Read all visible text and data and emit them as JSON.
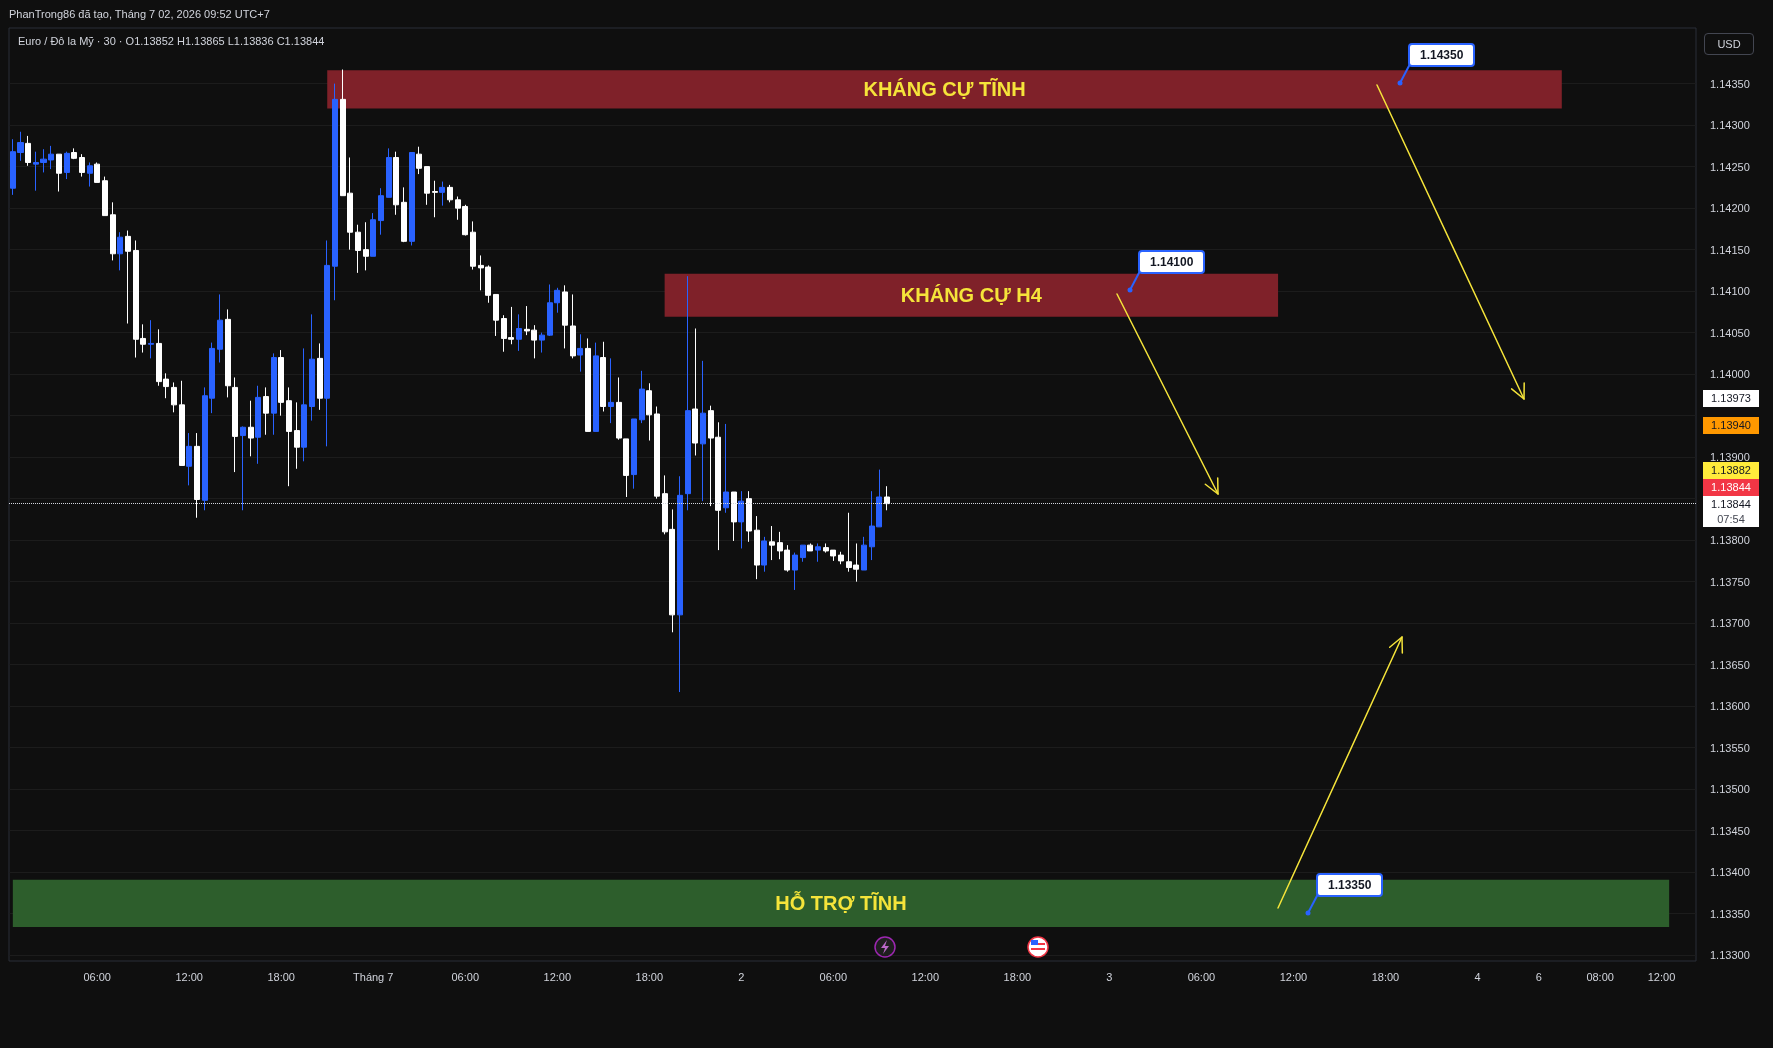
{
  "chart_data": {
    "type": "candlestick",
    "title": "PhanTrong86 đã tạo, Tháng 7 02, 2026 09:52 UTC+7",
    "subtitle": "Euro / Đô la Mỹ · 30 · O1.13852 H1.13865 L1.13836 C1.13844",
    "categories": [
      null,
      null,
      null,
      null,
      null,
      null,
      null,
      null,
      null,
      null,
      null,
      "06:00",
      null,
      null,
      null,
      null,
      null,
      null,
      null,
      null,
      null,
      null,
      null,
      "12:00",
      null,
      null,
      null,
      null,
      null,
      null,
      null,
      null,
      null,
      null,
      null,
      "18:00",
      null,
      null,
      null,
      null,
      null,
      null,
      null,
      null,
      null,
      null,
      null,
      "Tháng 7",
      null,
      null,
      null,
      null,
      null,
      null,
      null,
      null,
      null,
      null,
      null,
      "06:00",
      null,
      null,
      null,
      null,
      null,
      null,
      null,
      null,
      null,
      null,
      null,
      "12:00",
      null,
      null,
      null,
      null,
      null,
      null,
      null,
      null,
      null,
      null,
      null,
      "18:00",
      null,
      null,
      null,
      null,
      null,
      null,
      null,
      null,
      null,
      null,
      null,
      "2",
      null,
      null,
      null,
      null,
      null,
      null,
      null,
      null,
      null,
      null,
      null,
      "06:00",
      null,
      null,
      null,
      null,
      null,
      null,
      null,
      null,
      null,
      null,
      null,
      "12:00",
      null,
      null,
      null,
      null,
      null,
      null,
      null,
      null,
      null,
      null,
      null,
      "18:00",
      null,
      null,
      null,
      null,
      null,
      null,
      null,
      null,
      null,
      null,
      null,
      "3",
      null,
      null,
      null,
      null,
      null,
      null,
      null,
      null,
      null,
      null,
      null,
      "06:00",
      null,
      null,
      null,
      null,
      null,
      null,
      null,
      null,
      null,
      null,
      null,
      "12:00",
      null,
      null,
      null,
      null,
      null,
      null,
      null,
      null,
      null,
      null,
      null,
      "18:00",
      null,
      null,
      null,
      null,
      null,
      null,
      null,
      null,
      null,
      null,
      null,
      "4",
      null,
      null,
      null,
      null,
      null,
      null,
      null,
      "6",
      null,
      null,
      null,
      null,
      null,
      null,
      null,
      "08:00",
      null,
      null,
      null,
      null,
      null,
      null,
      null,
      "12:00",
      null,
      null,
      null,
      null
    ],
    "ohlc": [
      [
        1.14224,
        1.14283,
        1.14216,
        1.14268
      ],
      [
        1.14267,
        1.14292,
        1.14257,
        1.14279
      ],
      [
        1.14278,
        1.14287,
        1.14251,
        1.14255
      ],
      [
        1.14253,
        1.14268,
        1.14221,
        1.14255
      ],
      [
        1.14255,
        1.14271,
        1.14243,
        1.14259
      ],
      [
        1.14258,
        1.14275,
        1.14247,
        1.14265
      ],
      [
        1.14265,
        1.14265,
        1.1422,
        1.14242
      ],
      [
        1.14243,
        1.14268,
        1.14235,
        1.14266
      ],
      [
        1.14267,
        1.14272,
        1.14259,
        1.1426
      ],
      [
        1.14261,
        1.14265,
        1.14238,
        1.14243
      ],
      [
        1.14242,
        1.14255,
        1.14226,
        1.14251
      ],
      [
        1.14253,
        1.14255,
        1.14231,
        1.14231
      ],
      [
        1.14233,
        1.14238,
        1.14191,
        1.14191
      ],
      [
        1.14192,
        1.14207,
        1.14137,
        1.14145
      ],
      [
        1.14145,
        1.14171,
        1.14125,
        1.14165
      ],
      [
        1.14166,
        1.14173,
        1.14061,
        1.14148
      ],
      [
        1.14149,
        1.14161,
        1.1402,
        1.14042
      ],
      [
        1.14043,
        1.1406,
        1.14026,
        1.14036
      ],
      [
        1.14036,
        1.14065,
        1.14019,
        1.14037
      ],
      [
        1.14037,
        1.14054,
        1.13986,
        1.13991
      ],
      [
        1.13994,
        1.14001,
        1.13971,
        1.13985
      ],
      [
        1.13984,
        1.1399,
        1.13954,
        1.13963
      ],
      [
        1.13963,
        1.13992,
        1.1389,
        1.1389
      ],
      [
        1.13889,
        1.13929,
        1.13866,
        1.13913
      ],
      [
        1.13913,
        1.13929,
        1.13827,
        1.13849
      ],
      [
        1.13848,
        1.13984,
        1.13836,
        1.13974
      ],
      [
        1.13971,
        1.14038,
        1.13953,
        1.14031
      ],
      [
        1.1403,
        1.14096,
        1.14014,
        1.14065
      ],
      [
        1.14066,
        1.14078,
        1.13972,
        1.13986
      ],
      [
        1.13984,
        1.13996,
        1.13882,
        1.13925
      ],
      [
        1.13926,
        1.13937,
        1.13836,
        1.13936
      ],
      [
        1.13936,
        1.13968,
        1.13901,
        1.13923
      ],
      [
        1.13924,
        1.13986,
        1.13892,
        1.13972
      ],
      [
        1.13973,
        1.13984,
        1.13927,
        1.13953
      ],
      [
        1.13953,
        1.14025,
        1.13927,
        1.1402
      ],
      [
        1.1402,
        1.14029,
        1.1395,
        1.13966
      ],
      [
        1.13968,
        1.13984,
        1.13865,
        1.13931
      ],
      [
        1.13932,
        1.13966,
        1.13886,
        1.13912
      ],
      [
        1.13912,
        1.14031,
        1.13895,
        1.13963
      ],
      [
        1.13961,
        1.14072,
        1.13944,
        1.14018
      ],
      [
        1.14019,
        1.14037,
        1.13957,
        1.13971
      ],
      [
        1.13971,
        1.14161,
        1.13913,
        1.14131
      ],
      [
        1.1413,
        1.1435,
        1.14089,
        1.14331
      ],
      [
        1.14331,
        1.14367,
        1.14215,
        1.14215
      ],
      [
        1.14218,
        1.14261,
        1.1415,
        1.14171
      ],
      [
        1.14171,
        1.1418,
        1.14122,
        1.14149
      ],
      [
        1.1415,
        1.14183,
        1.14125,
        1.14142
      ],
      [
        1.14142,
        1.14194,
        1.14142,
        1.14186
      ],
      [
        1.14185,
        1.14224,
        1.14168,
        1.14215
      ],
      [
        1.14213,
        1.14272,
        1.14213,
        1.14261
      ],
      [
        1.14261,
        1.14268,
        1.14192,
        1.14204
      ],
      [
        1.14207,
        1.14225,
        1.14159,
        1.1416
      ],
      [
        1.1416,
        1.14267,
        1.14155,
        1.14267
      ],
      [
        1.14265,
        1.14274,
        1.14241,
        1.14248
      ],
      [
        1.1425,
        1.1425,
        1.14204,
        1.14218
      ],
      [
        1.1422,
        1.14233,
        1.14189,
        1.14219
      ],
      [
        1.14219,
        1.14232,
        1.14203,
        1.14225
      ],
      [
        1.14225,
        1.14228,
        1.14207,
        1.1421
      ],
      [
        1.1421,
        1.14214,
        1.14186,
        1.142
      ],
      [
        1.14202,
        1.14204,
        1.14167,
        1.14168
      ],
      [
        1.14171,
        1.14184,
        1.14126,
        1.1413
      ],
      [
        1.14131,
        1.14143,
        1.14101,
        1.14128
      ],
      [
        1.14129,
        1.14131,
        1.14086,
        1.14095
      ],
      [
        1.14096,
        1.14096,
        1.14046,
        1.14065
      ],
      [
        1.14067,
        1.14071,
        1.14027,
        1.14043
      ],
      [
        1.14044,
        1.14081,
        1.14036,
        1.14042
      ],
      [
        1.14042,
        1.14072,
        1.14028,
        1.14055
      ],
      [
        1.14054,
        1.14082,
        1.14047,
        1.14052
      ],
      [
        1.14053,
        1.14059,
        1.14019,
        1.14041
      ],
      [
        1.14041,
        1.1405,
        1.14026,
        1.14047
      ],
      [
        1.14047,
        1.14108,
        1.14046,
        1.14086
      ],
      [
        1.14086,
        1.14104,
        1.14074,
        1.14101
      ],
      [
        1.14099,
        1.14107,
        1.14031,
        1.14059
      ],
      [
        1.14058,
        1.14096,
        1.14019,
        1.14022
      ],
      [
        1.14023,
        1.14048,
        1.14003,
        1.14031
      ],
      [
        1.14031,
        1.14043,
        1.13931,
        1.13931
      ],
      [
        1.13931,
        1.14038,
        1.13931,
        1.14022
      ],
      [
        1.1402,
        1.14039,
        1.13955,
        1.13961
      ],
      [
        1.13961,
        1.14019,
        1.13941,
        1.13966
      ],
      [
        1.13966,
        1.13996,
        1.13921,
        1.13923
      ],
      [
        1.13922,
        1.13922,
        1.13852,
        1.13878
      ],
      [
        1.13879,
        1.13946,
        1.13862,
        1.13946
      ],
      [
        1.13945,
        1.14004,
        1.13941,
        1.13982
      ],
      [
        1.1398,
        1.13989,
        1.1392,
        1.13951
      ],
      [
        1.13952,
        1.13961,
        1.1385,
        1.13853
      ],
      [
        1.13856,
        1.13878,
        1.13807,
        1.1381
      ],
      [
        1.13813,
        1.13837,
        1.13689,
        1.1371
      ],
      [
        1.1371,
        1.13877,
        1.13617,
        1.13854
      ],
      [
        1.13856,
        1.14118,
        1.13836,
        1.13956
      ],
      [
        1.13958,
        1.14055,
        1.13902,
        1.13917
      ],
      [
        1.13916,
        1.14016,
        1.13847,
        1.13953
      ],
      [
        1.13956,
        1.13962,
        1.13841,
        1.13923
      ],
      [
        1.13924,
        1.13942,
        1.13788,
        1.13836
      ],
      [
        1.13839,
        1.1394,
        1.13833,
        1.13858
      ],
      [
        1.13858,
        1.13858,
        1.13799,
        1.13822
      ],
      [
        1.13822,
        1.13859,
        1.1379,
        1.13847
      ],
      [
        1.1385,
        1.13859,
        1.13798,
        1.13811
      ],
      [
        1.13812,
        1.13829,
        1.13753,
        1.1377
      ],
      [
        1.1377,
        1.13804,
        1.13762,
        1.13799
      ],
      [
        1.13798,
        1.13817,
        1.13776,
        1.13794
      ],
      [
        1.13797,
        1.1381,
        1.13777,
        1.13787
      ],
      [
        1.13788,
        1.13794,
        1.13762,
        1.13764
      ],
      [
        1.13764,
        1.13785,
        1.1374,
        1.13782
      ],
      [
        1.13779,
        1.13794,
        1.13774,
        1.13794
      ],
      [
        1.13794,
        1.13796,
        1.13787,
        1.13787
      ],
      [
        1.13788,
        1.13796,
        1.13774,
        1.13792
      ],
      [
        1.13791,
        1.13796,
        1.13785,
        1.13787
      ],
      [
        1.13788,
        1.13788,
        1.13775,
        1.13781
      ],
      [
        1.13782,
        1.13786,
        1.13771,
        1.13775
      ],
      [
        1.13774,
        1.13833,
        1.13762,
        1.13767
      ],
      [
        1.1377,
        1.13796,
        1.1375,
        1.13765
      ],
      [
        1.13764,
        1.13804,
        1.13764,
        1.13794
      ],
      [
        1.13792,
        1.13859,
        1.13776,
        1.13817
      ],
      [
        1.13816,
        1.13885,
        1.13816,
        1.13852
      ],
      [
        1.13852,
        1.13865,
        1.13836,
        1.13844
      ],
      null,
      null,
      null,
      null,
      null,
      null,
      null,
      null,
      null,
      null,
      null,
      null,
      null,
      null,
      null,
      null,
      null,
      null,
      null,
      null,
      null,
      null,
      null,
      null,
      null,
      null,
      null,
      null,
      null,
      null,
      null,
      null,
      null,
      null,
      null,
      null,
      null,
      null,
      null,
      null,
      null,
      null,
      null,
      null,
      null,
      null,
      null,
      null,
      null,
      null,
      null,
      null,
      null,
      null,
      null,
      null,
      null,
      null,
      null,
      null,
      null,
      null,
      null,
      null,
      null,
      null,
      null,
      null,
      null,
      null,
      null,
      null,
      null,
      null,
      null,
      null,
      null,
      null,
      null,
      null,
      null,
      null,
      null,
      null,
      null,
      null,
      null,
      null,
      null,
      null,
      null,
      null,
      null,
      null,
      null,
      null,
      null,
      null,
      null,
      null,
      null,
      null,
      null,
      null,
      null
    ],
    "colors": [
      "#2962ff",
      "#2962ff",
      "#ffffff",
      "#2962ff",
      "#2962ff",
      "#2962ff",
      "#ffffff",
      "#2962ff",
      "#ffffff",
      "#ffffff",
      "#2962ff",
      "#ffffff",
      "#ffffff",
      "#ffffff",
      "#2962ff",
      "#ffffff",
      "#ffffff",
      "#ffffff",
      "#2962ff",
      "#ffffff",
      "#ffffff",
      "#ffffff",
      "#ffffff",
      "#2962ff",
      "#ffffff",
      "#2962ff",
      "#2962ff",
      "#2962ff",
      "#ffffff",
      "#ffffff",
      "#2962ff",
      "#ffffff",
      "#2962ff",
      "#ffffff",
      "#2962ff",
      "#ffffff",
      "#ffffff",
      "#ffffff",
      "#2962ff",
      "#2962ff",
      "#ffffff",
      "#2962ff",
      "#2962ff",
      "#ffffff",
      "#ffffff",
      "#ffffff",
      "#ffffff",
      "#2962ff",
      "#2962ff",
      "#2962ff",
      "#ffffff",
      "#ffffff",
      "#2962ff",
      "#ffffff",
      "#ffffff",
      "#ffffff",
      "#2962ff",
      "#ffffff",
      "#ffffff",
      "#ffffff",
      "#ffffff",
      "#ffffff",
      "#ffffff",
      "#ffffff",
      "#ffffff",
      "#ffffff",
      "#2962ff",
      "#ffffff",
      "#ffffff",
      "#2962ff",
      "#2962ff",
      "#2962ff",
      "#ffffff",
      "#ffffff",
      "#2962ff",
      "#ffffff",
      "#2962ff",
      "#ffffff",
      "#2962ff",
      "#ffffff",
      "#ffffff",
      "#2962ff",
      "#2962ff",
      "#ffffff",
      "#ffffff",
      "#ffffff",
      "#ffffff",
      "#2962ff",
      "#2962ff",
      "#ffffff",
      "#2962ff",
      "#ffffff",
      "#ffffff",
      "#2962ff",
      "#ffffff",
      "#2962ff",
      "#ffffff",
      "#ffffff",
      "#2962ff",
      "#ffffff",
      "#ffffff",
      "#ffffff",
      "#2962ff",
      "#2962ff",
      "#ffffff",
      "#2962ff",
      "#ffffff",
      "#ffffff",
      "#ffffff",
      "#ffffff",
      "#ffffff",
      "#2962ff",
      "#2962ff",
      "#2962ff",
      "#ffffff",
      null,
      null,
      null,
      null,
      null,
      null,
      null,
      null,
      null,
      null,
      null,
      null,
      null,
      null,
      null,
      null,
      null,
      null,
      null,
      null,
      null,
      null,
      null,
      null,
      null,
      null,
      null,
      null,
      null,
      null,
      null,
      null,
      null,
      null,
      null,
      null,
      null,
      null,
      null,
      null,
      null,
      null,
      null,
      null,
      null,
      null,
      null,
      null,
      null,
      null,
      null,
      null,
      null,
      null,
      null,
      null,
      null,
      null,
      null,
      null,
      null,
      null,
      null,
      null,
      null,
      null,
      null,
      null,
      null,
      null,
      null,
      null,
      null,
      null,
      null,
      null,
      null,
      null,
      null,
      null,
      null,
      null,
      null,
      null,
      null,
      null,
      null,
      null,
      null,
      null,
      null,
      null,
      null,
      null,
      null,
      null,
      null,
      null,
      null,
      null,
      null,
      null,
      null,
      null,
      null
    ],
    "ylim": [
      1.13293,
      1.14417
    ],
    "yticks": [
      {
        "value": 1.133,
        "label": "1.13300"
      },
      {
        "value": 1.1335,
        "label": "1.13350"
      },
      {
        "value": 1.134,
        "label": "1.13400"
      },
      {
        "value": 1.1345,
        "label": "1.13450"
      },
      {
        "value": 1.135,
        "label": "1.13500"
      },
      {
        "value": 1.1355,
        "label": "1.13550"
      },
      {
        "value": 1.136,
        "label": "1.13600"
      },
      {
        "value": 1.1365,
        "label": "1.13650"
      },
      {
        "value": 1.137,
        "label": "1.13700"
      },
      {
        "value": 1.1375,
        "label": "1.13750"
      },
      {
        "value": 1.138,
        "label": "1.13800"
      },
      {
        "value": 1.1385,
        "label": null
      },
      {
        "value": 1.139,
        "label": "1.13900"
      },
      {
        "value": 1.1395,
        "label": null
      },
      {
        "value": 1.14,
        "label": "1.14000"
      },
      {
        "value": 1.1405,
        "label": "1.14050"
      },
      {
        "value": 1.141,
        "label": "1.14100"
      },
      {
        "value": 1.1415,
        "label": "1.14150"
      },
      {
        "value": 1.142,
        "label": "1.14200"
      },
      {
        "value": 1.1425,
        "label": "1.14250"
      },
      {
        "value": 1.143,
        "label": "1.14300"
      },
      {
        "value": 1.1435,
        "label": "1.14350"
      }
    ],
    "grid": "y",
    "bands": [
      {
        "axis": "y",
        "from": 1.1432,
        "to": 1.14366,
        "label": "KHÁNG CỰ TĨNH",
        "color": "#7f2129"
      },
      {
        "axis": "y",
        "from": 1.14069,
        "to": 1.14121,
        "label": "KHÁNG CỰ H4",
        "color": "#7f2129"
      },
      {
        "axis": "y",
        "from": 1.13334,
        "to": 1.13391,
        "label": "HỖ TRỢ TĨNH",
        "color": "#2d5e2c"
      }
    ],
    "ref_lines": [
      {
        "axis": "y",
        "value": 1.13844,
        "label": "1.13844",
        "color": "#d1d4dc",
        "line_style": "dotted"
      }
    ],
    "annotations": [
      "USD",
      "1.13973",
      "1.13940",
      "1.13882",
      "1.13844",
      "07:54",
      "1.14350",
      "1.14100",
      "1.13350"
    ]
  }
}
